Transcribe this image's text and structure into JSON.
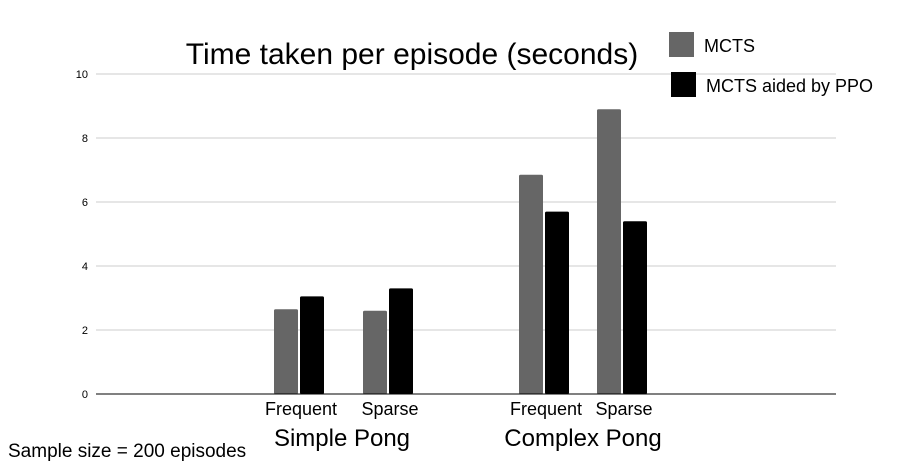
{
  "chart_data": {
    "type": "bar",
    "title": "Time taken per episode (seconds)",
    "xlabel": "",
    "ylabel": "",
    "ylim": [
      0,
      10
    ],
    "yticks": [
      "0",
      "2",
      "4",
      "6",
      "8",
      "10"
    ],
    "groups": [
      {
        "label": "Simple Pong",
        "categories": [
          "Frequent",
          "Sparse"
        ]
      },
      {
        "label": "Complex Pong",
        "categories": [
          "Frequent",
          "Sparse"
        ]
      }
    ],
    "categories": [
      "Frequent",
      "Sparse",
      "Frequent",
      "Sparse"
    ],
    "series": [
      {
        "name": "MCTS",
        "color": "#666666",
        "values": [
          2.65,
          2.6,
          6.85,
          8.9
        ]
      },
      {
        "name": "MCTS aided by PPO",
        "color": "#000000",
        "values": [
          3.05,
          3.3,
          5.7,
          5.4
        ]
      }
    ],
    "grid": true,
    "legend_position": "top-right",
    "annotation": "Sample size = 200 episodes"
  }
}
